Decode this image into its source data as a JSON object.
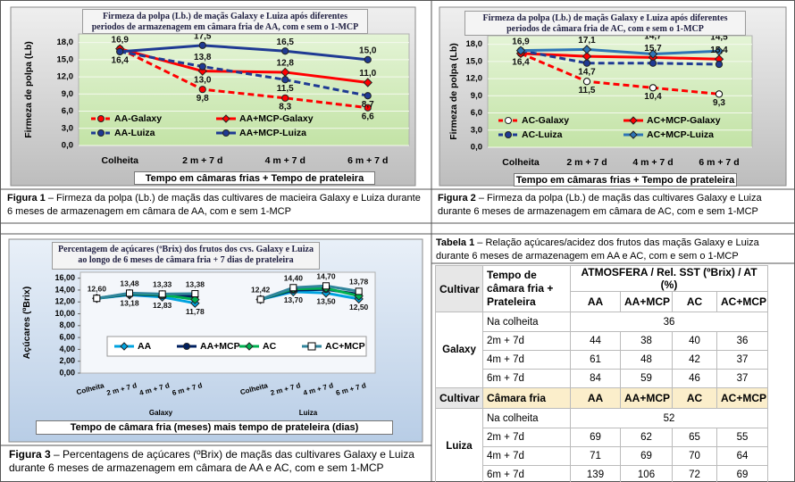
{
  "chart_data": [
    {
      "type": "line",
      "title": "Firmeza da polpa (Lb.) de maçãs Galaxy e Luiza após diferentes periodos de armazenagem em câmara fria de AA, com e sem o 1-MCP",
      "ylabel": "Firmeza de polpa (Lb)",
      "xlabel": "Tempo em câmaras frias + Tempo de prateleira",
      "categories": [
        "Colheita",
        "2 m + 7 d",
        "4 m + 7 d",
        "6 m + 7 d"
      ],
      "ylim": [
        0,
        19.5
      ],
      "yticks": [
        {
          "value": 0,
          "label": "0,0"
        },
        {
          "value": 3,
          "label": "3,0"
        },
        {
          "value": 6,
          "label": "6,0"
        },
        {
          "value": 9,
          "label": "9,0"
        },
        {
          "value": 12,
          "label": "12,0"
        },
        {
          "value": 15,
          "label": "15,0"
        },
        {
          "value": 18,
          "label": "18,0"
        }
      ],
      "grid": true,
      "series": [
        {
          "name": "AA-Galaxy",
          "color": "#ff0000",
          "line_style": "dashed",
          "marker": "circle",
          "values": [
            16.9,
            9.8,
            8.3,
            6.6
          ],
          "value_labels": [
            "16,9",
            "9,8",
            "8,3",
            "6,6"
          ]
        },
        {
          "name": "AA+MCP-Galaxy",
          "color": "#ff0000",
          "line_style": "solid",
          "marker": "diamond",
          "values": [
            16.9,
            13.0,
            12.8,
            11.0
          ],
          "value_labels": [
            null,
            "13,0",
            "12,8",
            "11,0"
          ]
        },
        {
          "name": "AA-Luiza",
          "color": "#1f3a93",
          "line_style": "dashed",
          "marker": "circle",
          "values": [
            16.4,
            13.8,
            11.5,
            8.7
          ],
          "value_labels": [
            "16,4",
            "13,8",
            "11,5",
            "8,7"
          ]
        },
        {
          "name": "AA+MCP-Luiza",
          "color": "#1f3a93",
          "line_style": "solid",
          "marker": "circle",
          "values": [
            16.4,
            17.5,
            16.5,
            15.0
          ],
          "value_labels": [
            null,
            "17,5",
            "16,5",
            "15,0"
          ]
        }
      ]
    },
    {
      "type": "line",
      "title": "Firmeza da polpa (Lb.) de maçãs Galaxy e Luiza após diferentes periodos de câmara fria de AC, com e sem o 1-MCP",
      "ylabel": "Firmeza de polpa (Lb)",
      "xlabel": "Tempo em câmaras frias + Tempo de prateleira",
      "categories": [
        "Colheita",
        "2 m + 7 d",
        "4 m + 7 d",
        "6 m + 7 d"
      ],
      "ylim": [
        0,
        19.5
      ],
      "yticks": [
        {
          "value": 0,
          "label": "0,0"
        },
        {
          "value": 3,
          "label": "3,0"
        },
        {
          "value": 6,
          "label": "6,0"
        },
        {
          "value": 9,
          "label": "9,0"
        },
        {
          "value": 12,
          "label": "12,0"
        },
        {
          "value": 15,
          "label": "15,0"
        },
        {
          "value": 18,
          "label": "18,0"
        }
      ],
      "grid": true,
      "series": [
        {
          "name": "AC-Galaxy",
          "color": "#ff0000",
          "line_style": "dashed",
          "marker": "circle",
          "marker_fill": "#ffffff",
          "values": [
            16.4,
            11.5,
            10.4,
            9.3
          ],
          "value_labels": [
            "16,4",
            "11,5",
            "10,4",
            "9,3"
          ]
        },
        {
          "name": "AC+MCP-Galaxy",
          "color": "#ff0000",
          "line_style": "solid",
          "marker": "diamond",
          "values": [
            16.4,
            15.9,
            15.7,
            15.4
          ],
          "value_labels": [
            null,
            null,
            "15,7",
            "15,4"
          ]
        },
        {
          "name": "AC-Luiza",
          "color": "#1f3a93",
          "line_style": "dashed",
          "marker": "circle",
          "values": [
            16.9,
            14.7,
            14.7,
            14.5
          ],
          "value_labels": [
            null,
            "14,7",
            "14,7",
            "14,5"
          ]
        },
        {
          "name": "AC+MCP-Luiza",
          "color": "#2e75b6",
          "line_style": "solid",
          "marker": "diamond",
          "values": [
            16.9,
            17.1,
            16.3,
            16.8
          ],
          "value_labels": [
            "16,9",
            "17,1",
            "16,3",
            "16,8"
          ]
        }
      ]
    },
    {
      "type": "line",
      "title": "Percentagem de açúcares (ºBrix) dos frutos dos cvs. Galaxy e Luiza ao longo de 6 meses de câmara fria + 7 dias de prateleira",
      "ylabel": "Açúcares (ºBrix)",
      "xlabel": "Tempo de câmara fria (meses) mais tempo de prateleira (dias)",
      "categories": [
        "Colheita",
        "2 m + 7 d",
        "4 m + 7 d",
        "6 m + 7 d",
        null,
        "Colheita",
        "2 m + 7 d",
        "4 m + 7 d",
        "6 m + 7 d"
      ],
      "groups": [
        "Galaxy",
        "Luiza"
      ],
      "ylim": [
        0,
        17
      ],
      "yticks": [
        {
          "value": 0,
          "label": "0,00"
        },
        {
          "value": 2,
          "label": "2,00"
        },
        {
          "value": 4,
          "label": "4,00"
        },
        {
          "value": 6,
          "label": "6,00"
        },
        {
          "value": 8,
          "label": "8,00"
        },
        {
          "value": 10,
          "label": "10,00"
        },
        {
          "value": 12,
          "label": "12,00"
        },
        {
          "value": 14,
          "label": "14,00"
        },
        {
          "value": 16,
          "label": "16,00"
        }
      ],
      "grid": false,
      "series": [
        {
          "name": "AA",
          "color": "#00a3e0",
          "line_style": "solid",
          "marker": "diamond",
          "values": [
            12.6,
            13.18,
            12.83,
            11.78,
            null,
            12.42,
            13.7,
            13.5,
            12.5
          ],
          "value_labels": [
            "12,60",
            "13,18",
            "12,83",
            "11,78",
            null,
            "12,42",
            "13,70",
            "13,50",
            "12,50"
          ]
        },
        {
          "name": "AA+MCP",
          "color": "#002060",
          "line_style": "solid",
          "marker": "circle",
          "values": [
            12.6,
            13.3,
            13.1,
            12.9,
            null,
            12.42,
            14.0,
            14.1,
            13.3
          ]
        },
        {
          "name": "AC",
          "color": "#00b050",
          "line_style": "solid",
          "marker": "diamond",
          "values": [
            12.6,
            13.4,
            13.2,
            12.4,
            null,
            12.42,
            14.2,
            14.3,
            13.0
          ]
        },
        {
          "name": "AC+MCP",
          "color": "#31859c",
          "line_style": "solid",
          "marker": "square",
          "marker_fill": "#ffffff",
          "values": [
            12.6,
            13.48,
            13.33,
            13.38,
            null,
            12.42,
            14.4,
            14.7,
            13.78
          ],
          "value_labels": [
            null,
            "13,48",
            "13,33",
            "13,38",
            null,
            null,
            "14,40",
            "14,70",
            "13,78"
          ]
        }
      ]
    }
  ],
  "figure_captions": [
    {
      "label": "Figura 1",
      "text": "– Firmeza da polpa (Lb.) de maçãs das cultivares de macieira Galaxy e Luiza durante 6 meses de armazenagem em câmara de AA, com e sem 1-MCP"
    },
    {
      "label": "Figura 2",
      "text": "– Firmeza da polpa (Lb.) de maçãs das cultivares Galaxy e Luiza durante 6 meses de armazenagem em câmara de AC, com e sem 1-MCP"
    },
    {
      "label": "Figura 3",
      "text": "– Percentagens de açúcares (ºBrix) de maçãs das cultivares Galaxy e Luiza durante 6 meses de armazenagem em câmara de AA e AC, com e sem 1-MCP"
    }
  ],
  "table": {
    "caption": {
      "label": "Tabela 1",
      "text": "– Relação açúcares/acidez dos frutos das maçãs Galaxy e Luiza durante 6 meses de armazenagem em AA e AC, com e sem o 1-MCP"
    },
    "sections": [
      {
        "header": {
          "cultivar": "Cultivar",
          "time": "Tempo de câmara fria + Prateleira",
          "group": "ATMOSFERA / Rel. SST (ºBrix) / AT (%)",
          "columns": [
            "AA",
            "AA+MCP",
            "AC",
            "AC+MCP"
          ]
        },
        "cultivar": "Galaxy",
        "harvest_label": "Na colheita",
        "harvest_value": 36,
        "rows": [
          {
            "label": "2m + 7d",
            "values": [
              44,
              38,
              40,
              36
            ]
          },
          {
            "label": "4m + 7d",
            "values": [
              61,
              48,
              42,
              37
            ]
          },
          {
            "label": "6m + 7d",
            "values": [
              84,
              59,
              46,
              37
            ]
          }
        ]
      },
      {
        "header": {
          "cultivar": "Cultivar",
          "time": "Câmara fria",
          "columns": [
            "AA",
            "AA+MCP",
            "AC",
            "AC+MCP"
          ]
        },
        "cultivar": "Luiza",
        "harvest_label": "Na colheita",
        "harvest_value": 52,
        "rows": [
          {
            "label": "2m + 7d",
            "values": [
              69,
              62,
              65,
              55
            ]
          },
          {
            "label": "4m + 7d",
            "values": [
              71,
              69,
              70,
              64
            ]
          },
          {
            "label": "6m + 7d",
            "values": [
              139,
              106,
              72,
              69
            ]
          }
        ]
      }
    ]
  }
}
